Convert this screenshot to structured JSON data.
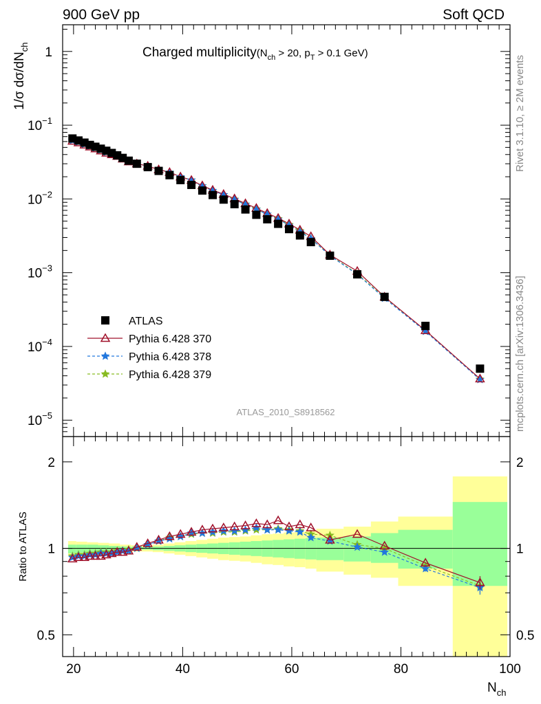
{
  "header": {
    "left": "900 GeV pp",
    "right": "Soft QCD"
  },
  "title": {
    "main": "Charged multiplicity",
    "cut_open": "(N",
    "cut_sub1": "ch",
    "cut_mid": " > 20, p",
    "cut_sub2": "T",
    "cut_end": " > 0.1 GeV)"
  },
  "analysis_id": "ATLAS_2010_S8918562",
  "side_text": {
    "top": "Rivet 3.1.10, ≥ 2M events",
    "bottom": "mcplots.cern.ch [arXiv:1306.3436]"
  },
  "colors": {
    "data": "#000000",
    "p370": "#a0102a",
    "p378": "#2277dd",
    "p379": "#88bb22",
    "band_inner": "#99ff99",
    "band_outer": "#ffff99"
  },
  "chart_data": [
    {
      "type": "scatter",
      "scale": "log",
      "ylabel_parts": {
        "a": "1/σ dσ/dN",
        "sub": "ch"
      },
      "ylim": [
        6e-06,
        2.3
      ],
      "yticks": [
        {
          "value": 1,
          "base": "1",
          "exp": ""
        },
        {
          "value": 0.1,
          "base": "10",
          "exp": "−1"
        },
        {
          "value": 0.01,
          "base": "10",
          "exp": "−2"
        },
        {
          "value": 0.001,
          "base": "10",
          "exp": "−3"
        },
        {
          "value": 0.0001,
          "base": "10",
          "exp": "−4"
        },
        {
          "value": 1e-05,
          "base": "10",
          "exp": "−5"
        }
      ],
      "legend": {
        "position": "lower-left",
        "entries": [
          "ATLAS",
          "Pythia 6.428 370",
          "Pythia 6.428 378",
          "Pythia 6.428 379"
        ]
      },
      "x": [
        19.8,
        20.9,
        22.0,
        23.0,
        24.0,
        25.0,
        26.0,
        27.0,
        28.0,
        29.0,
        30.1,
        31.6,
        33.6,
        35.6,
        37.6,
        39.6,
        41.6,
        43.6,
        45.5,
        47.5,
        49.5,
        51.5,
        53.5,
        55.5,
        57.5,
        59.5,
        61.5,
        63.5,
        67.0,
        72.0,
        77.0,
        84.5,
        94.5
      ],
      "series": [
        {
          "name": "ATLAS",
          "values": [
            0.066,
            0.062,
            0.058,
            0.054,
            0.051,
            0.048,
            0.045,
            0.042,
            0.039,
            0.036,
            0.033,
            0.03,
            0.027,
            0.024,
            0.021,
            0.018,
            0.0155,
            0.013,
            0.0113,
            0.0098,
            0.0085,
            0.0072,
            0.0061,
            0.0053,
            0.0046,
            0.0039,
            0.0032,
            0.0026,
            0.0017,
            0.00095,
            0.00047,
            0.00019,
            5e-05
          ]
        },
        {
          "name": "Pythia 6.428 370",
          "values": [
            0.061,
            0.058,
            0.054,
            0.051,
            0.048,
            0.045,
            0.042,
            0.04,
            0.038,
            0.035,
            0.032,
            0.03,
            0.028,
            0.025,
            0.023,
            0.02,
            0.018,
            0.0152,
            0.0132,
            0.0116,
            0.0101,
            0.0087,
            0.0075,
            0.0064,
            0.0055,
            0.0046,
            0.0038,
            0.0031,
            0.00175,
            0.00105,
            0.00047,
            0.000165,
            3.65e-05
          ]
        },
        {
          "name": "Pythia 6.428 378",
          "values": [
            0.062,
            0.059,
            0.055,
            0.052,
            0.049,
            0.046,
            0.043,
            0.04,
            0.038,
            0.035,
            0.032,
            0.03,
            0.028,
            0.025,
            0.023,
            0.02,
            0.018,
            0.015,
            0.013,
            0.0114,
            0.0098,
            0.0084,
            0.0072,
            0.0062,
            0.0053,
            0.0044,
            0.0036,
            0.0029,
            0.0017,
            0.00095,
            0.00045,
            0.00016,
            3.55e-05
          ]
        },
        {
          "name": "Pythia 6.428 379",
          "values": [
            0.064,
            0.06,
            0.056,
            0.052,
            0.049,
            0.046,
            0.043,
            0.041,
            0.038,
            0.035,
            0.032,
            0.03,
            0.028,
            0.025,
            0.023,
            0.02,
            0.018,
            0.015,
            0.013,
            0.0114,
            0.0099,
            0.0085,
            0.0073,
            0.0062,
            0.0054,
            0.0045,
            0.0037,
            0.0029,
            0.00172,
            0.00097,
            0.00046,
            0.000162,
            3.6e-05
          ]
        }
      ]
    },
    {
      "type": "line",
      "scale": "log",
      "ylabel": "Ratio to ATLAS",
      "xlabel_parts": {
        "a": "N",
        "sub": "ch"
      },
      "xlim": [
        18,
        100
      ],
      "ylim": [
        0.42,
        2.45
      ],
      "xticks": [
        20,
        40,
        60,
        80,
        100
      ],
      "yticks": [
        {
          "value": 0.5,
          "label": "0.5"
        },
        {
          "value": 1,
          "label": "1"
        },
        {
          "value": 2,
          "label": "2"
        }
      ],
      "bands": [
        {
          "x": [
            19,
            20.5
          ],
          "inner": [
            0.96,
            1.03
          ],
          "outer": [
            0.94,
            1.06
          ]
        },
        {
          "x": [
            20.5,
            22.5
          ],
          "inner": [
            0.965,
            1.03
          ],
          "outer": [
            0.945,
            1.055
          ]
        },
        {
          "x": [
            22.5,
            24.5
          ],
          "inner": [
            0.97,
            1.03
          ],
          "outer": [
            0.95,
            1.05
          ]
        },
        {
          "x": [
            24.5,
            26.5
          ],
          "inner": [
            0.975,
            1.025
          ],
          "outer": [
            0.955,
            1.045
          ]
        },
        {
          "x": [
            26.5,
            28.5
          ],
          "inner": [
            0.98,
            1.02
          ],
          "outer": [
            0.96,
            1.04
          ]
        },
        {
          "x": [
            28.5,
            30.5
          ],
          "inner": [
            0.985,
            1.015
          ],
          "outer": [
            0.97,
            1.03
          ]
        },
        {
          "x": [
            30.5,
            32.5
          ],
          "inner": [
            0.99,
            1.01
          ],
          "outer": [
            0.975,
            1.025
          ]
        },
        {
          "x": [
            32.5,
            34.5
          ],
          "inner": [
            0.99,
            1.01
          ],
          "outer": [
            0.975,
            1.025
          ]
        },
        {
          "x": [
            34.5,
            36.5
          ],
          "inner": [
            0.985,
            1.015
          ],
          "outer": [
            0.97,
            1.03
          ]
        },
        {
          "x": [
            36.5,
            38.5
          ],
          "inner": [
            0.98,
            1.02
          ],
          "outer": [
            0.96,
            1.04
          ]
        },
        {
          "x": [
            38.5,
            40.5
          ],
          "inner": [
            0.975,
            1.025
          ],
          "outer": [
            0.95,
            1.05
          ]
        },
        {
          "x": [
            40.5,
            42.5
          ],
          "inner": [
            0.97,
            1.03
          ],
          "outer": [
            0.94,
            1.06
          ]
        },
        {
          "x": [
            42.5,
            44.5
          ],
          "inner": [
            0.965,
            1.035
          ],
          "outer": [
            0.93,
            1.07
          ]
        },
        {
          "x": [
            44.5,
            46.5
          ],
          "inner": [
            0.96,
            1.04
          ],
          "outer": [
            0.92,
            1.08
          ]
        },
        {
          "x": [
            46.5,
            48.5
          ],
          "inner": [
            0.955,
            1.045
          ],
          "outer": [
            0.91,
            1.09
          ]
        },
        {
          "x": [
            48.5,
            50.5
          ],
          "inner": [
            0.95,
            1.05
          ],
          "outer": [
            0.905,
            1.095
          ]
        },
        {
          "x": [
            50.5,
            52.5
          ],
          "inner": [
            0.945,
            1.055
          ],
          "outer": [
            0.9,
            1.1
          ]
        },
        {
          "x": [
            52.5,
            54.5
          ],
          "inner": [
            0.94,
            1.06
          ],
          "outer": [
            0.89,
            1.11
          ]
        },
        {
          "x": [
            54.5,
            56.5
          ],
          "inner": [
            0.935,
            1.065
          ],
          "outer": [
            0.88,
            1.12
          ]
        },
        {
          "x": [
            56.5,
            58.5
          ],
          "inner": [
            0.93,
            1.07
          ],
          "outer": [
            0.875,
            1.125
          ]
        },
        {
          "x": [
            58.5,
            60.5
          ],
          "inner": [
            0.925,
            1.075
          ],
          "outer": [
            0.865,
            1.135
          ]
        },
        {
          "x": [
            60.5,
            62.5
          ],
          "inner": [
            0.92,
            1.08
          ],
          "outer": [
            0.86,
            1.14
          ]
        },
        {
          "x": [
            62.5,
            64.5
          ],
          "inner": [
            0.915,
            1.085
          ],
          "outer": [
            0.85,
            1.15
          ]
        },
        {
          "x": [
            64.5,
            69.5
          ],
          "inner": [
            0.91,
            1.09
          ],
          "outer": [
            0.83,
            1.17
          ]
        },
        {
          "x": [
            69.5,
            74.5
          ],
          "inner": [
            0.9,
            1.1
          ],
          "outer": [
            0.81,
            1.19
          ]
        },
        {
          "x": [
            74.5,
            79.5
          ],
          "inner": [
            0.89,
            1.13
          ],
          "outer": [
            0.79,
            1.24
          ]
        },
        {
          "x": [
            79.5,
            89.5
          ],
          "inner": [
            0.85,
            1.16
          ],
          "outer": [
            0.74,
            1.29
          ]
        },
        {
          "x": [
            89.5,
            99.5
          ],
          "inner": [
            0.74,
            1.45
          ],
          "outer": [
            0.42,
            1.78
          ]
        }
      ],
      "x": [
        19.8,
        20.9,
        22.0,
        23.0,
        24.0,
        25.0,
        26.0,
        27.0,
        28.0,
        29.0,
        30.1,
        31.6,
        33.6,
        35.6,
        37.6,
        39.6,
        41.6,
        43.6,
        45.5,
        47.5,
        49.5,
        51.5,
        53.5,
        55.5,
        57.5,
        59.5,
        61.5,
        63.5,
        67.0,
        72.0,
        77.0,
        84.5,
        94.5
      ],
      "series": [
        {
          "name": "Pythia 6.428 370",
          "values": [
            0.92,
            0.93,
            0.93,
            0.94,
            0.94,
            0.94,
            0.95,
            0.96,
            0.97,
            0.97,
            0.98,
            1.01,
            1.04,
            1.07,
            1.1,
            1.12,
            1.14,
            1.16,
            1.17,
            1.18,
            1.19,
            1.2,
            1.22,
            1.21,
            1.25,
            1.19,
            1.21,
            1.18,
            1.07,
            1.12,
            1.02,
            0.89,
            0.76
          ],
          "err": [
            0,
            0,
            0,
            0,
            0,
            0,
            0,
            0,
            0,
            0,
            0,
            0,
            0,
            0,
            0,
            0,
            0,
            0,
            0,
            0,
            0,
            0,
            0,
            0,
            0,
            0,
            0,
            0,
            0,
            0,
            0,
            0,
            0.04
          ]
        },
        {
          "name": "Pythia 6.428 378",
          "values": [
            0.93,
            0.94,
            0.94,
            0.95,
            0.95,
            0.96,
            0.96,
            0.96,
            0.97,
            0.98,
            0.98,
            1.0,
            1.03,
            1.06,
            1.08,
            1.1,
            1.13,
            1.13,
            1.14,
            1.15,
            1.15,
            1.16,
            1.18,
            1.16,
            1.16,
            1.15,
            1.14,
            1.09,
            1.06,
            1.01,
            0.97,
            0.85,
            0.73
          ],
          "err": [
            0,
            0,
            0,
            0,
            0,
            0,
            0,
            0,
            0,
            0,
            0,
            0,
            0,
            0,
            0,
            0,
            0,
            0,
            0,
            0,
            0,
            0,
            0,
            0,
            0,
            0,
            0,
            0,
            0,
            0,
            0,
            0.02,
            0.04
          ]
        },
        {
          "name": "Pythia 6.428 379",
          "values": [
            0.94,
            0.95,
            0.95,
            0.96,
            0.96,
            0.97,
            0.97,
            0.97,
            0.98,
            0.98,
            0.99,
            1.0,
            1.03,
            1.06,
            1.09,
            1.1,
            1.12,
            1.13,
            1.13,
            1.14,
            1.14,
            1.15,
            1.16,
            1.16,
            1.17,
            1.16,
            1.15,
            1.12,
            1.11,
            1.03,
            1.0,
            0.87,
            0.74
          ],
          "err": [
            0,
            0,
            0,
            0,
            0,
            0,
            0,
            0,
            0,
            0,
            0,
            0,
            0,
            0,
            0,
            0,
            0,
            0,
            0,
            0,
            0,
            0,
            0,
            0,
            0,
            0,
            0,
            0,
            0,
            0,
            0,
            0.02,
            0.04
          ]
        }
      ]
    }
  ]
}
